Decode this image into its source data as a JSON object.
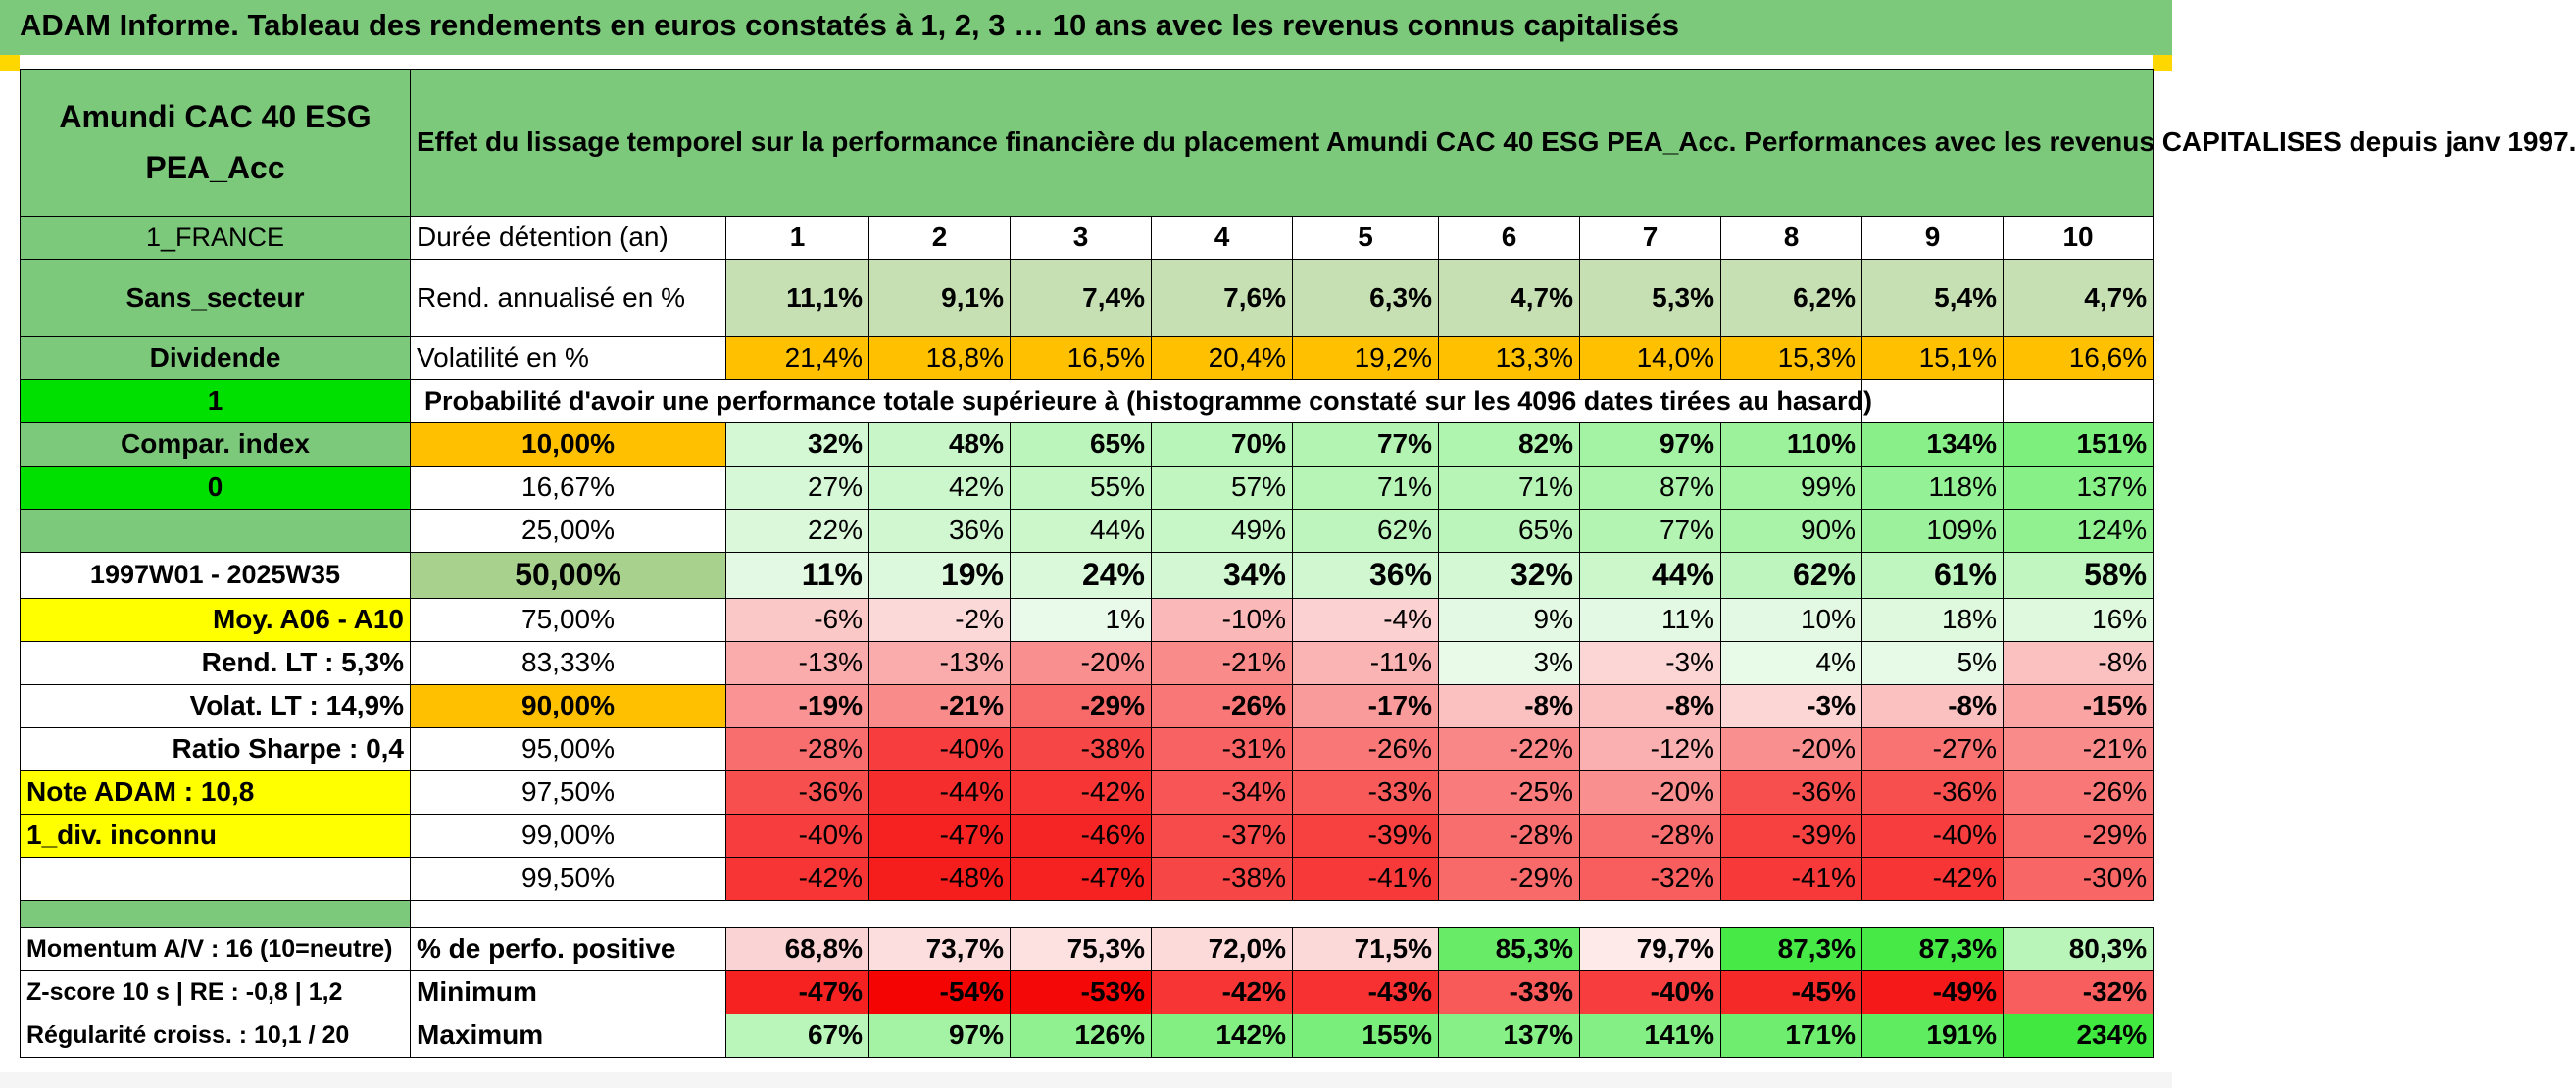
{
  "title": "ADAM Informe. Tableau des rendements en euros constatés à 1, 2, 3 … 10 ans avec les revenus connus capitalisés",
  "header": {
    "fund_name": "Amundi CAC 40 ESG PEA_Acc",
    "description": "Effet du lissage temporel sur la performance financière du placement Amundi CAC 40 ESG PEA_Acc. Performances avec les revenus CAPITALISES depuis janv 1997."
  },
  "side": {
    "country": "1_FRANCE",
    "sector": "Sans_secteur",
    "dividend": "Dividende",
    "flag1": "1",
    "compar_index": "Compar. index",
    "flag0": "0",
    "period": "1997W01 - 2025W35",
    "moy": "Moy. A06 - A10",
    "rend_lt": "Rend. LT :   5,3%",
    "volat_lt": "Volat. LT :   14,9%",
    "sharpe": "Ratio Sharpe :   0,4",
    "note_adam": "Note ADAM : 10,8",
    "div_inconnu": "1_div. inconnu"
  },
  "rows": {
    "duration_label": "Durée détention (an)",
    "years": [
      "1",
      "2",
      "3",
      "4",
      "5",
      "6",
      "7",
      "8",
      "9",
      "10"
    ],
    "rend_label": "Rend. annualisé en %",
    "rend": [
      "11,1%",
      "9,1%",
      "7,4%",
      "7,6%",
      "6,3%",
      "4,7%",
      "5,3%",
      "6,2%",
      "5,4%",
      "4,7%"
    ],
    "vol_label": "Volatilité en %",
    "vol": [
      "21,4%",
      "18,8%",
      "16,5%",
      "20,4%",
      "19,2%",
      "13,3%",
      "14,0%",
      "15,3%",
      "15,1%",
      "16,6%"
    ],
    "prob_label": "Probabilité d'avoir une performance totale supérieure à (histogramme constaté sur les 4096 dates tirées au hasard)"
  },
  "prob_rows": [
    {
      "pct": "10,00%",
      "vals": [
        "32%",
        "48%",
        "65%",
        "70%",
        "77%",
        "82%",
        "97%",
        "110%",
        "134%",
        "151%"
      ]
    },
    {
      "pct": "16,67%",
      "vals": [
        "27%",
        "42%",
        "55%",
        "57%",
        "71%",
        "71%",
        "87%",
        "99%",
        "118%",
        "137%"
      ]
    },
    {
      "pct": "25,00%",
      "vals": [
        "22%",
        "36%",
        "44%",
        "49%",
        "62%",
        "65%",
        "77%",
        "90%",
        "109%",
        "124%"
      ]
    },
    {
      "pct": "50,00%",
      "vals": [
        "11%",
        "19%",
        "24%",
        "34%",
        "36%",
        "32%",
        "44%",
        "62%",
        "61%",
        "58%"
      ]
    },
    {
      "pct": "75,00%",
      "vals": [
        "-6%",
        "-2%",
        "1%",
        "-10%",
        "-4%",
        "9%",
        "11%",
        "10%",
        "18%",
        "16%"
      ]
    },
    {
      "pct": "83,33%",
      "vals": [
        "-13%",
        "-13%",
        "-20%",
        "-21%",
        "-11%",
        "3%",
        "-3%",
        "4%",
        "5%",
        "-8%"
      ]
    },
    {
      "pct": "90,00%",
      "vals": [
        "-19%",
        "-21%",
        "-29%",
        "-26%",
        "-17%",
        "-8%",
        "-8%",
        "-3%",
        "-8%",
        "-15%"
      ]
    },
    {
      "pct": "95,00%",
      "vals": [
        "-28%",
        "-40%",
        "-38%",
        "-31%",
        "-26%",
        "-22%",
        "-12%",
        "-20%",
        "-27%",
        "-21%"
      ]
    },
    {
      "pct": "97,50%",
      "vals": [
        "-36%",
        "-44%",
        "-42%",
        "-34%",
        "-33%",
        "-25%",
        "-20%",
        "-36%",
        "-36%",
        "-26%"
      ]
    },
    {
      "pct": "99,00%",
      "vals": [
        "-40%",
        "-47%",
        "-46%",
        "-37%",
        "-39%",
        "-28%",
        "-28%",
        "-39%",
        "-40%",
        "-29%"
      ]
    },
    {
      "pct": "99,50%",
      "vals": [
        "-42%",
        "-48%",
        "-47%",
        "-38%",
        "-41%",
        "-29%",
        "-32%",
        "-41%",
        "-42%",
        "-30%"
      ]
    }
  ],
  "bottom": {
    "momentum": "Momentum A/V : 16 (10=neutre)",
    "zscore": "Z-score 10 s | RE : -0,8 | 1,2",
    "regularite": "Régularité croiss. : 10,1 / 20",
    "pos_label": "% de perfo. positive",
    "pos": [
      "68,8%",
      "73,7%",
      "75,3%",
      "72,0%",
      "71,5%",
      "85,3%",
      "79,7%",
      "87,3%",
      "87,3%",
      "80,3%"
    ],
    "min_label": "Minimum",
    "min": [
      "-47%",
      "-54%",
      "-53%",
      "-42%",
      "-43%",
      "-33%",
      "-40%",
      "-45%",
      "-49%",
      "-32%"
    ],
    "max_label": "Maximum",
    "max": [
      "67%",
      "97%",
      "126%",
      "142%",
      "155%",
      "137%",
      "141%",
      "171%",
      "191%",
      "234%"
    ]
  },
  "colors": {
    "header_green": "#7cc97c",
    "bright_green": "#00e000",
    "yellow": "#ffff00",
    "orange": "#ffc000",
    "label_red": "#d00000"
  }
}
